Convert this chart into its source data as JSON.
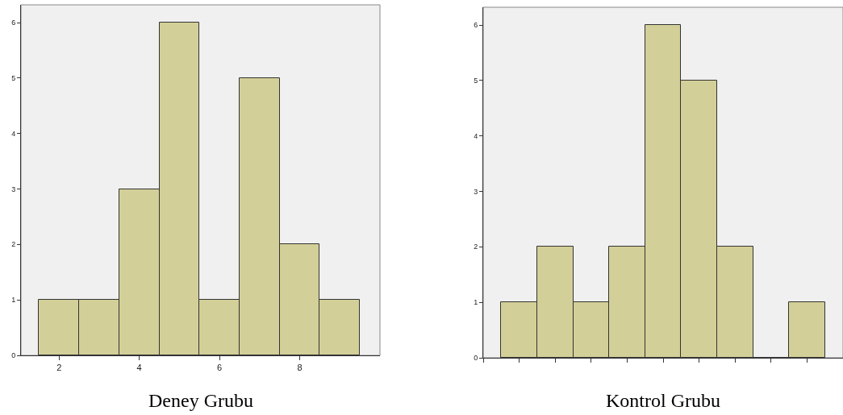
{
  "chart_data": [
    {
      "type": "histogram",
      "title": "Deney Grubu",
      "bins": [
        1.5,
        2.5,
        3.5,
        4.5,
        5.5,
        6.5,
        7.5,
        8.5,
        9.5
      ],
      "values": [
        1,
        1,
        3,
        6,
        1,
        5,
        2,
        1
      ],
      "color": "#d3cf98",
      "xlim": [
        1.05,
        10
      ],
      "xticks": [
        2,
        4,
        6,
        8
      ],
      "ylim": [
        0,
        6.32
      ],
      "yticks": [
        0,
        1,
        2,
        3,
        4,
        5,
        6
      ]
    },
    {
      "type": "bar",
      "title": "Kontrol Grubu",
      "categories": [
        null,
        null,
        null,
        null,
        null,
        null,
        null,
        null,
        null
      ],
      "values": [
        1,
        2,
        1,
        2,
        6,
        5,
        2,
        0,
        1
      ],
      "color": "#d3cf98",
      "ylim": [
        0,
        6.32
      ],
      "yticks": [
        0,
        1,
        2,
        3,
        4,
        5,
        6
      ]
    }
  ]
}
